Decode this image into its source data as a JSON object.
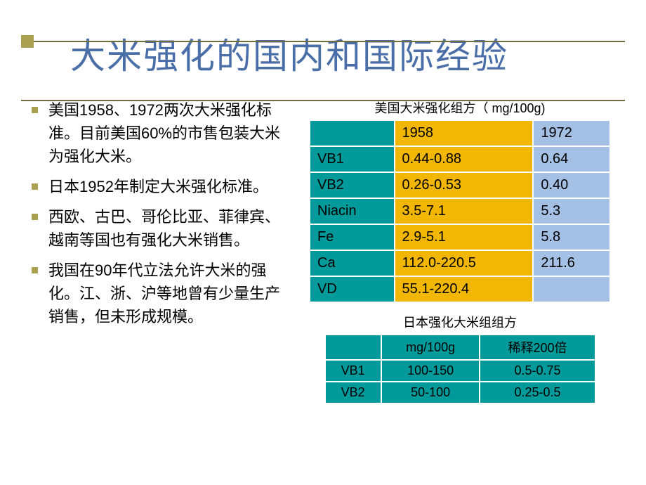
{
  "title": "大米强化的国内和国际经验",
  "bullets": [
    "美国1958、1972两次大米强化标准。目前美国60%的市售包装大米为强化大米。",
    "日本1952年制定大米强化标准。",
    "西欧、古巴、哥伦比亚、菲律宾、越南等国也有强化大米销售。",
    "我国在90年代立法允许大米的强化。江、浙、沪等地曾有少量生产销售，但未形成规模。"
  ],
  "table1": {
    "caption": "美国大米强化组方（ mg/100g)",
    "headers": [
      "",
      "1958",
      "1972"
    ],
    "rows": [
      [
        "VB1",
        "0.44-0.88",
        "0.64"
      ],
      [
        "VB2",
        "0.26-0.53",
        "0.40"
      ],
      [
        "Niacin",
        "3.5-7.1",
        "5.3"
      ],
      [
        "Fe",
        "2.9-5.1",
        "5.8"
      ],
      [
        "Ca",
        "112.0-220.5",
        "211.6"
      ],
      [
        "VD",
        "55.1-220.4",
        ""
      ]
    ]
  },
  "table2": {
    "caption": "日本强化大米组组方",
    "headers": [
      "",
      "mg/100g",
      "稀释200倍"
    ],
    "rows": [
      [
        "VB1",
        "100-150",
        "0.5-0.75"
      ],
      [
        "VB2",
        "50-100",
        "0.25-0.5"
      ]
    ]
  },
  "colors": {
    "title": "#4a6ea8",
    "accent": "#a9a14f",
    "teal": "#009a9a",
    "amber": "#f2b705",
    "blue": "#a4c0e4"
  }
}
